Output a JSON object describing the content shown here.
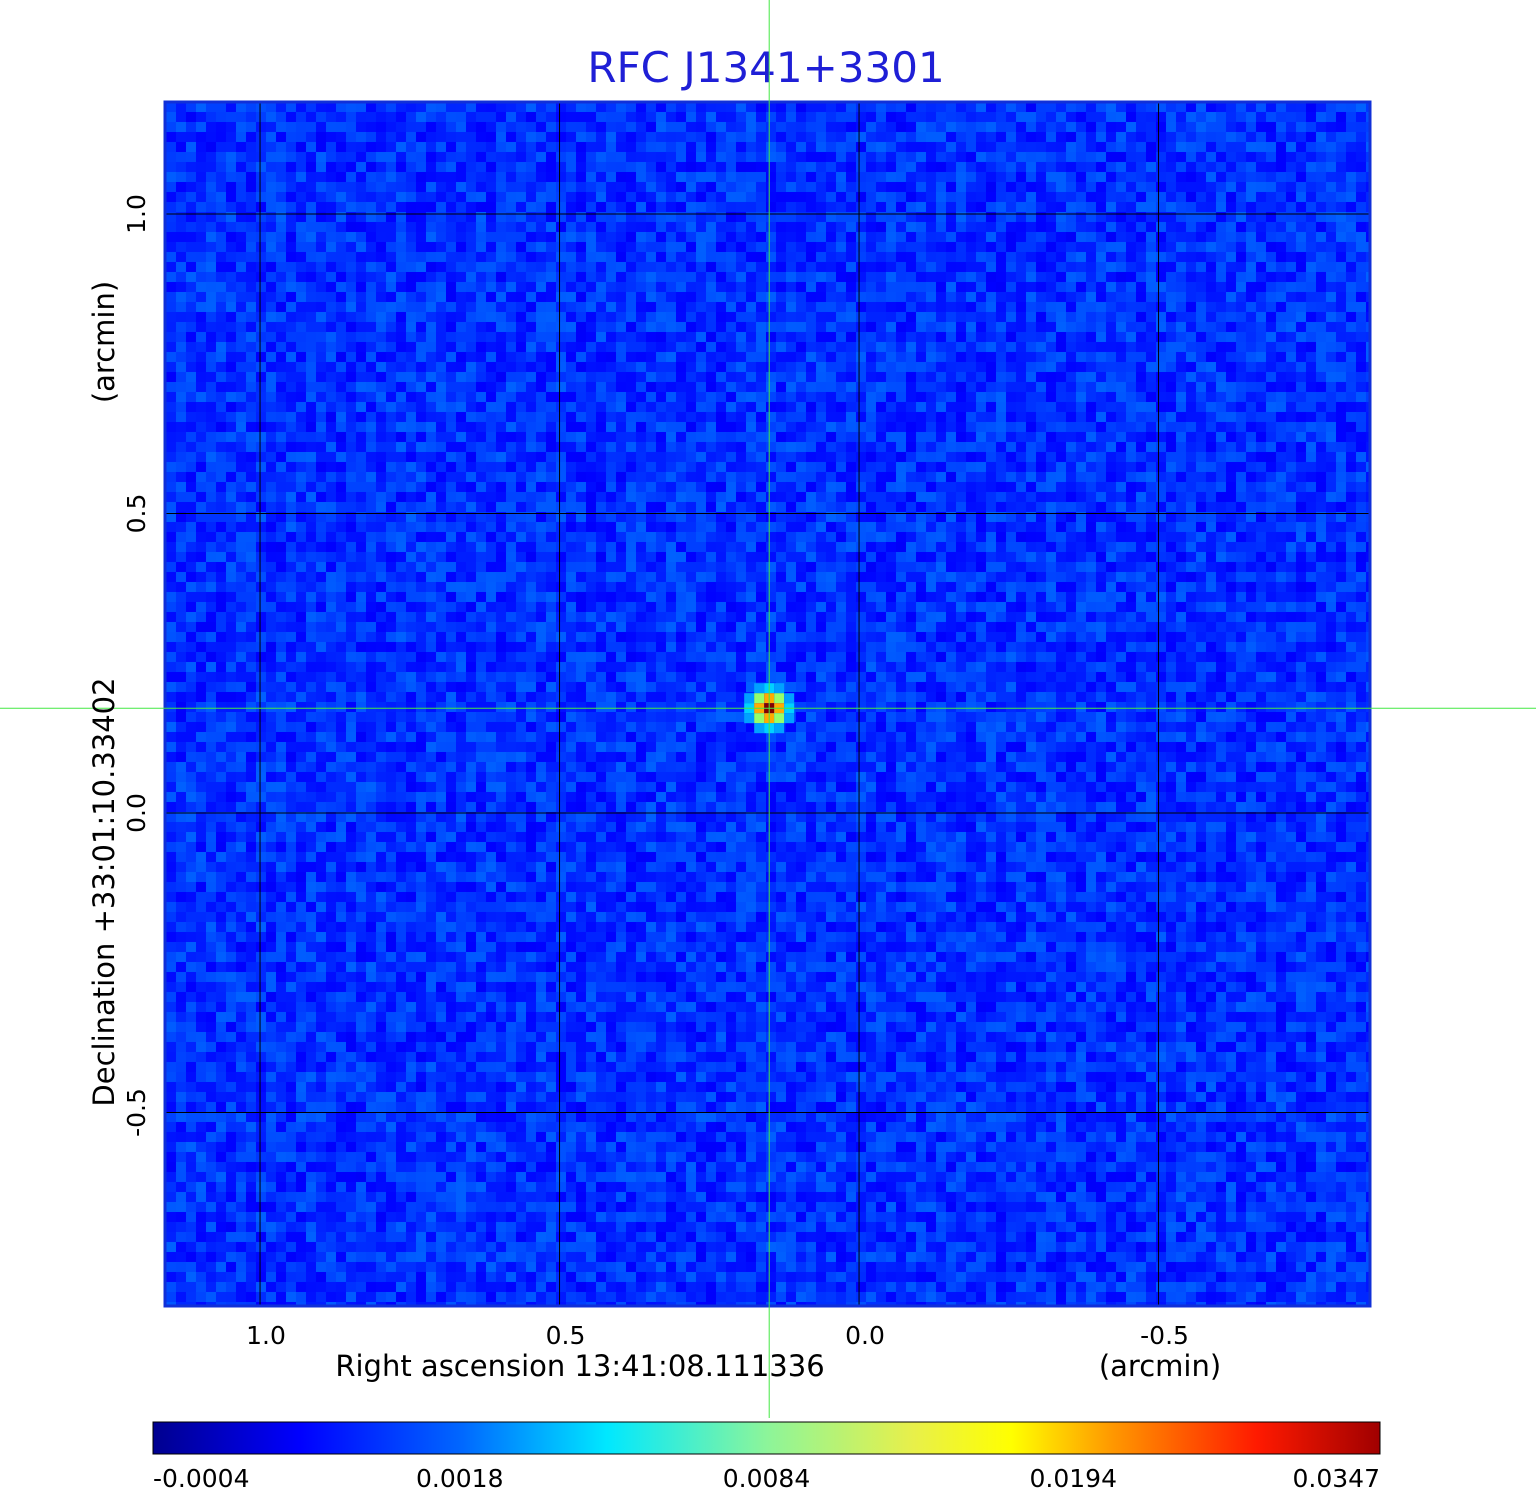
{
  "chart_data": {
    "type": "heatmap",
    "title": "RFC J1341+3301",
    "xlabel": "Right ascension  13:41:08.111336",
    "xunit": "(arcmin)",
    "ylabel": "Declination  +33:01:10.33402",
    "yunit": "(arcmin)",
    "x_ticks": [
      {
        "value": 1.0,
        "label": "1.0"
      },
      {
        "value": 0.5,
        "label": "0.5"
      },
      {
        "value": 0.0,
        "label": "0.0"
      },
      {
        "value": -0.5,
        "label": "-0.5"
      }
    ],
    "y_ticks": [
      {
        "value": 1.0,
        "label": "1.0"
      },
      {
        "value": 0.5,
        "label": "0.5"
      },
      {
        "value": 0.0,
        "label": "0.0"
      },
      {
        "value": -0.5,
        "label": "-0.5"
      }
    ],
    "xlim": [
      1.157,
      -0.853
    ],
    "ylim": [
      -0.823,
      1.187
    ],
    "x_reversed": true,
    "grid": true,
    "source": {
      "x": 0.15,
      "y": 0.175,
      "peak": 0.0347
    },
    "crosshair": {
      "x": 0.15,
      "y": 0.175
    },
    "colorbar": {
      "orientation": "horizontal",
      "placement": "bottom",
      "colormap": "jet",
      "tick_labels": [
        "-0.0004",
        "0.0018",
        "0.0084",
        "0.0194",
        "0.0347"
      ]
    },
    "colors": {
      "title": "#1f1fd6",
      "background_map": "#1a52f0",
      "grid": "#000000",
      "crosshair": "#44e844",
      "frame": "#1030d8"
    }
  }
}
